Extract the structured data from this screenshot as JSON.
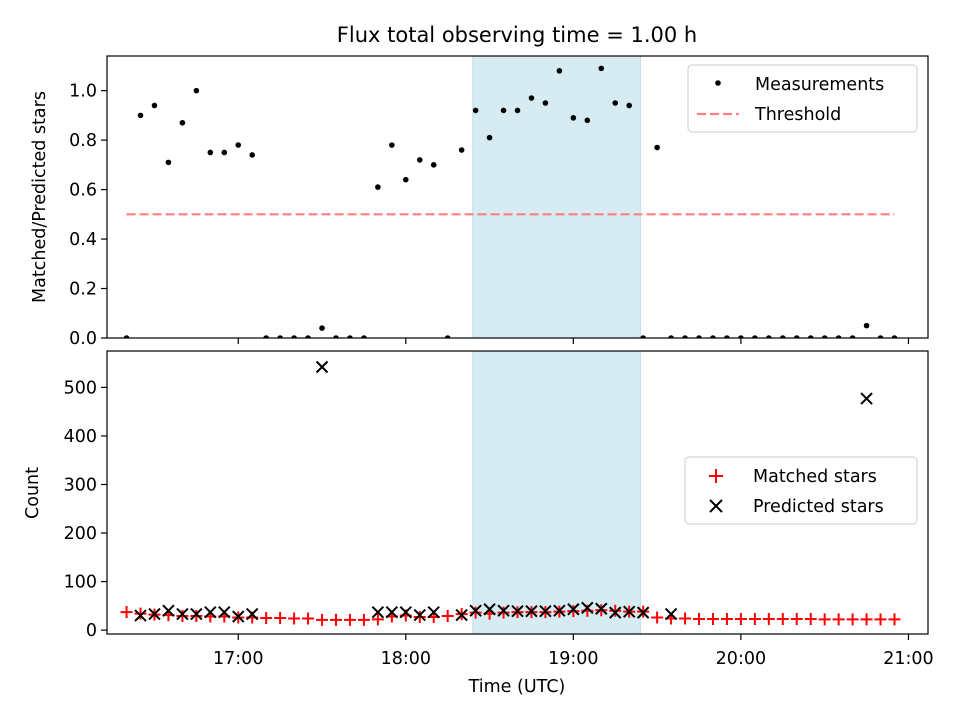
{
  "chart_data": {
    "type": "scatter",
    "title": "Flux total observing time = 1.00 h",
    "xlabel": "Time (UTC)",
    "x_ticks": [
      "17:00",
      "18:00",
      "19:00",
      "20:00",
      "21:00"
    ],
    "x_range": [
      "16:13",
      "21:07"
    ],
    "highlight_span": {
      "start": "18:24",
      "end": "19:24",
      "color": "#add8e6"
    },
    "times": [
      "16:20",
      "16:25",
      "16:30",
      "16:35",
      "16:40",
      "16:45",
      "16:50",
      "16:55",
      "17:00",
      "17:05",
      "17:10",
      "17:15",
      "17:20",
      "17:25",
      "17:30",
      "17:35",
      "17:40",
      "17:45",
      "17:50",
      "17:55",
      "18:00",
      "18:05",
      "18:10",
      "18:15",
      "18:20",
      "18:25",
      "18:30",
      "18:35",
      "18:40",
      "18:45",
      "18:50",
      "18:55",
      "19:00",
      "19:05",
      "19:10",
      "19:15",
      "19:20",
      "19:25",
      "19:30",
      "19:35",
      "19:40",
      "19:45",
      "19:50",
      "19:55",
      "20:00",
      "20:05",
      "20:10",
      "20:15",
      "20:20",
      "20:25",
      "20:30",
      "20:35",
      "20:40",
      "20:45",
      "20:50",
      "20:55"
    ],
    "panels": [
      {
        "ylabel": "Matched/Predicted stars",
        "ylim": [
          0,
          1.14
        ],
        "yticks": [
          "0.0",
          "0.2",
          "0.4",
          "0.6",
          "0.8",
          "1.0"
        ],
        "legend": [
          "Measurements",
          "Threshold"
        ],
        "legend_position": "upper right",
        "series": [
          {
            "name": "Measurements",
            "marker": "dot",
            "color": "#000000",
            "values": [
              0.0,
              0.9,
              0.94,
              0.71,
              0.87,
              1.0,
              0.75,
              0.75,
              0.78,
              0.74,
              0.0,
              0.0,
              0.0,
              0.0,
              0.04,
              0.0,
              0.0,
              0.0,
              0.61,
              0.78,
              0.64,
              0.72,
              0.7,
              0.0,
              0.76,
              0.92,
              0.81,
              0.92,
              0.92,
              0.97,
              0.95,
              1.08,
              0.89,
              0.88,
              1.09,
              0.95,
              0.94,
              0.0,
              0.77,
              0.0,
              0.0,
              0.0,
              0.0,
              0.0,
              0.0,
              0.0,
              0.0,
              0.0,
              0.0,
              0.0,
              0.0,
              0.0,
              0.0,
              0.05,
              0.0,
              0.0
            ]
          },
          {
            "name": "Threshold",
            "style": "dashed",
            "color": "#ff7f7f",
            "value": 0.5,
            "x_range": [
              "16:20",
              "20:55"
            ]
          }
        ]
      },
      {
        "ylabel": "Count",
        "ylim": [
          -8,
          575
        ],
        "yticks": [
          "0",
          "100",
          "200",
          "300",
          "400",
          "500"
        ],
        "legend": [
          "Matched stars",
          "Predicted stars"
        ],
        "legend_position": "center right",
        "series": [
          {
            "name": "Matched stars",
            "marker": "plus",
            "color": "#ff0000",
            "values": [
              37,
              34,
              32,
              31,
              29,
              29,
              28,
              28,
              26,
              26,
              25,
              25,
              24,
              24,
              21,
              21,
              21,
              21,
              22,
              28,
              30,
              27,
              27,
              29,
              33,
              36,
              34,
              36,
              37,
              37,
              37,
              38,
              39,
              40,
              41,
              40,
              38,
              38,
              26,
              24,
              24,
              23,
              23,
              23,
              23,
              23,
              23,
              23,
              23,
              23,
              22,
              22,
              22,
              22,
              22,
              22
            ]
          },
          {
            "name": "Predicted stars",
            "marker": "x",
            "color": "#000000",
            "values": [
              null,
              30,
              33,
              40,
              33,
              33,
              37,
              37,
              28,
              33,
              null,
              null,
              null,
              null,
              542,
              null,
              null,
              null,
              37,
              37,
              37,
              31,
              37,
              null,
              31,
              40,
              43,
              40,
              39,
              39,
              39,
              40,
              43,
              46,
              44,
              36,
              38,
              36,
              null,
              33,
              null,
              null,
              null,
              null,
              null,
              null,
              null,
              null,
              null,
              null,
              null,
              null,
              null,
              477,
              null,
              null
            ]
          }
        ]
      }
    ]
  }
}
